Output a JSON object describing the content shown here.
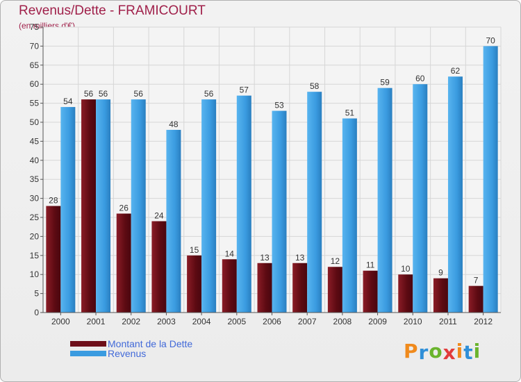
{
  "chart_data": {
    "type": "bar",
    "title": "Revenus/Dette - FRAMICOURT",
    "subtitle": "(en milliers d'€)",
    "categories": [
      "2000",
      "2001",
      "2002",
      "2003",
      "2004",
      "2005",
      "2006",
      "2007",
      "2008",
      "2009",
      "2010",
      "2011",
      "2012"
    ],
    "series": [
      {
        "name": "Montant de la Dette",
        "color": "#6e0f1a",
        "values": [
          28,
          56,
          26,
          24,
          15,
          14,
          13,
          13,
          12,
          11,
          10,
          9,
          7
        ]
      },
      {
        "name": "Revenus",
        "color": "#3a9be0",
        "values": [
          54,
          56,
          56,
          48,
          56,
          57,
          53,
          58,
          51,
          59,
          60,
          62,
          70
        ]
      }
    ],
    "ylim": [
      0,
      75
    ],
    "yticks": [
      0,
      5,
      10,
      15,
      20,
      25,
      30,
      35,
      40,
      45,
      50,
      55,
      60,
      65,
      70,
      75
    ],
    "grid": true,
    "legend": "bottom-left"
  },
  "logo": {
    "text": "Proxiti",
    "letters": [
      {
        "ch": "P",
        "color": "#f08a1c"
      },
      {
        "ch": "r",
        "color": "#2f8fd8"
      },
      {
        "ch": "o",
        "color": "#6ab42d"
      },
      {
        "ch": "x",
        "color": "#e23b3b"
      },
      {
        "ch": "i",
        "color": "#f08a1c"
      },
      {
        "ch": "t",
        "color": "#2f8fd8"
      },
      {
        "ch": "i",
        "color": "#6ab42d"
      }
    ]
  }
}
